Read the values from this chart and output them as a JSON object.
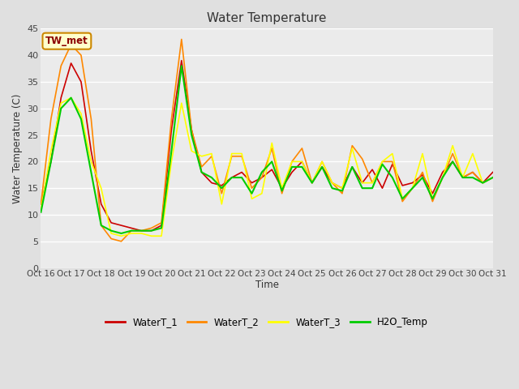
{
  "title": "Water Temperature",
  "ylabel": "Water Temperature (C)",
  "xlabel": "Time",
  "annotation_text": "TW_met",
  "annotation_color": "#8b0000",
  "annotation_bg": "#ffffcc",
  "annotation_border": "#cc8800",
  "ylim": [
    0,
    45
  ],
  "xlim": [
    0,
    15
  ],
  "xtick_labels": [
    "Oct 16",
    "Oct 17",
    "Oct 18",
    "Oct 19",
    "Oct 20",
    "Oct 21",
    "Oct 22",
    "Oct 23",
    "Oct 24",
    "Oct 25",
    "Oct 26",
    "Oct 27",
    "Oct 28",
    "Oct 29",
    "Oct 30",
    "Oct 31"
  ],
  "ytick_values": [
    0,
    5,
    10,
    15,
    20,
    25,
    30,
    35,
    40,
    45
  ],
  "bg_color": "#e0e0e0",
  "plot_bg_color": "#ebebeb",
  "grid_color": "#ffffff",
  "series_colors": [
    "#cc0000",
    "#ff8800",
    "#ffff00",
    "#00cc00"
  ],
  "series_names": [
    "WaterT_1",
    "WaterT_2",
    "WaterT_3",
    "H2O_Temp"
  ],
  "series_lw": [
    1.2,
    1.2,
    1.2,
    1.5
  ],
  "x_values": [
    0.0,
    0.333,
    0.667,
    1.0,
    1.333,
    1.667,
    2.0,
    2.333,
    2.667,
    3.0,
    3.333,
    3.667,
    4.0,
    4.333,
    4.667,
    5.0,
    5.333,
    5.667,
    6.0,
    6.333,
    6.667,
    7.0,
    7.333,
    7.667,
    8.0,
    8.333,
    8.667,
    9.0,
    9.333,
    9.667,
    10.0,
    10.333,
    10.667,
    11.0,
    11.333,
    11.667,
    12.0,
    12.333,
    12.667,
    13.0,
    13.333,
    13.667,
    14.0,
    14.333,
    14.667,
    15.0
  ],
  "WaterT_1": [
    12,
    20,
    32,
    38.5,
    35,
    22,
    12,
    8.5,
    8,
    7.5,
    7,
    7,
    8,
    26,
    39,
    26,
    18,
    16,
    15.5,
    17,
    18,
    16,
    17,
    18.5,
    15,
    18,
    20,
    16,
    19,
    16,
    15,
    19,
    16,
    18.5,
    15,
    19.5,
    15.5,
    16,
    17.5,
    14,
    18,
    20,
    17,
    18,
    16,
    18
  ],
  "WaterT_2": [
    12,
    28,
    38,
    42,
    40,
    28,
    8,
    5.5,
    5,
    7,
    7,
    7.5,
    8.5,
    28,
    43,
    26,
    19,
    21,
    14,
    21,
    21,
    15,
    17,
    22.5,
    14,
    20,
    22.5,
    16,
    20,
    16,
    14,
    23,
    20.5,
    16,
    20,
    20,
    12.5,
    15,
    18,
    12.5,
    17,
    21.5,
    17,
    18,
    16,
    17
  ],
  "WaterT_3": [
    11,
    22,
    31,
    32,
    29,
    20,
    15,
    6.5,
    6,
    6.5,
    6.5,
    6,
    6,
    20,
    31,
    22,
    21,
    21.5,
    12,
    21.5,
    21.5,
    13,
    14,
    23.5,
    15,
    20,
    20,
    16,
    20,
    16,
    15,
    22.5,
    16,
    16,
    20,
    21.5,
    13,
    15,
    21.5,
    13,
    17,
    23,
    17,
    21.5,
    16,
    17
  ],
  "H2O_Temp": [
    10.5,
    20,
    30,
    32,
    28,
    18,
    8,
    7,
    6.5,
    7,
    7,
    7,
    7.5,
    22,
    38,
    25,
    18,
    17,
    15,
    17,
    17,
    14,
    18,
    20,
    14.5,
    19,
    19,
    16,
    19,
    15,
    14.5,
    19,
    15,
    15,
    19.5,
    17,
    13,
    15,
    17,
    13,
    17,
    20,
    17,
    17,
    16,
    17
  ]
}
